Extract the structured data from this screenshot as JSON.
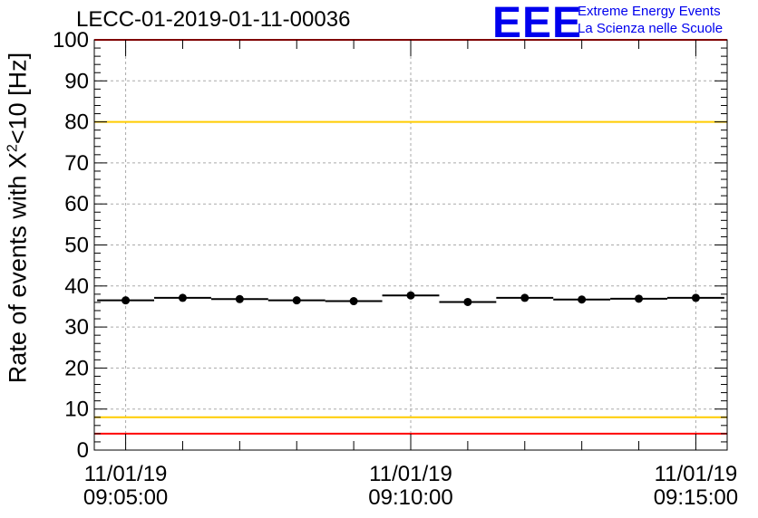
{
  "title": "LECC-01-2019-01-11-00036",
  "logo": {
    "mark": "EEE",
    "line1": "Extreme Energy Events",
    "line2": "La Scienza nelle Scuole"
  },
  "chart_data": {
    "type": "scatter",
    "ylabel_main": "Rate of events with X",
    "ylabel_sup": "2",
    "ylabel_tail": "<10 [Hz]",
    "ylim": [
      0,
      100
    ],
    "yticks": [
      0,
      10,
      20,
      30,
      40,
      50,
      60,
      70,
      80,
      90,
      100
    ],
    "x_ticks": [
      {
        "label_date": "11/01/19",
        "label_time": "09:05:00",
        "index": 0
      },
      {
        "label_date": "11/01/19",
        "label_time": "09:10:00",
        "index": 5
      },
      {
        "label_date": "11/01/19",
        "label_time": "09:15:00",
        "index": 10
      }
    ],
    "x_minor_ticks": [
      1,
      2,
      3,
      4,
      6,
      7,
      8,
      9
    ],
    "x_range": [
      -0.55,
      10.55
    ],
    "grid": true,
    "points": [
      {
        "x": 0,
        "y": 36.5
      },
      {
        "x": 1,
        "y": 37.1
      },
      {
        "x": 2,
        "y": 36.8
      },
      {
        "x": 3,
        "y": 36.5
      },
      {
        "x": 4,
        "y": 36.3
      },
      {
        "x": 5,
        "y": 37.7
      },
      {
        "x": 6,
        "y": 36.1
      },
      {
        "x": 7,
        "y": 37.1
      },
      {
        "x": 8,
        "y": 36.7
      },
      {
        "x": 9,
        "y": 36.9
      },
      {
        "x": 10,
        "y": 37.1
      }
    ],
    "reference_lines": [
      {
        "y": 100,
        "color": "#ff0000"
      },
      {
        "y": 80,
        "color": "#ffcc00"
      },
      {
        "y": 8,
        "color": "#ffcc00"
      },
      {
        "y": 4,
        "color": "#ff0000"
      }
    ]
  }
}
